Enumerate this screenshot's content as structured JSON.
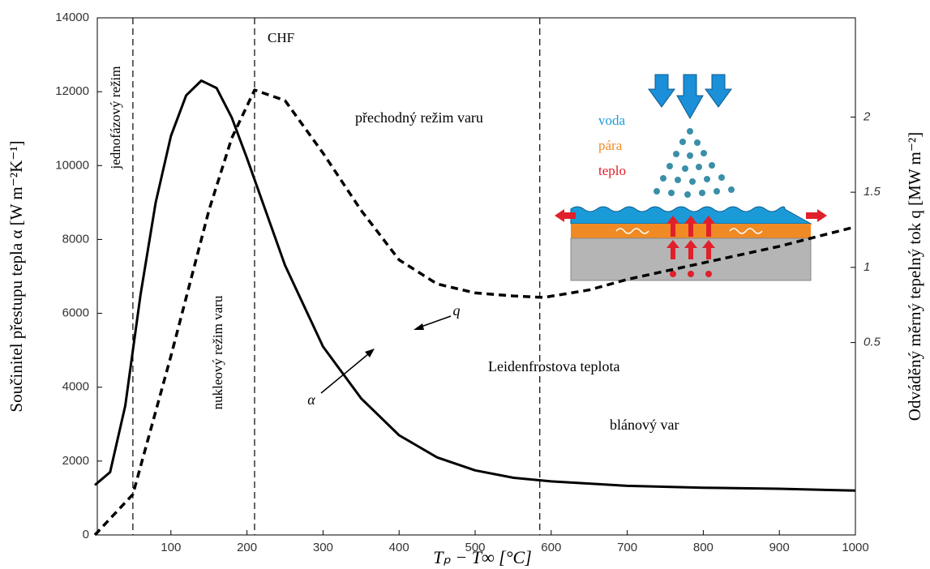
{
  "chart_data": {
    "type": "line",
    "xlabel": "Tₚ − T∞  [°C]",
    "ylabel": "Součinitel přestupu tepla α [W m⁻²K⁻¹]",
    "y2label": "Odváděný měrný tepelný tok q [MW m⁻²]",
    "xlim": [
      0,
      1000
    ],
    "xticks": [
      100,
      200,
      300,
      400,
      500,
      600,
      700,
      800,
      900,
      1000
    ],
    "ylim": [
      0,
      14000
    ],
    "yticks": [
      0,
      2000,
      4000,
      6000,
      8000,
      10000,
      12000,
      14000
    ],
    "y2lim": [
      -0.78,
      2.66
    ],
    "y2ticks": [
      0.5,
      1,
      1.5,
      2
    ],
    "vlines": [
      50,
      210,
      585
    ],
    "annotations": [
      "jednofázový režim",
      "CHF",
      "nukleový režim varu",
      "přechodný režim varu",
      "Leidenfrostova teplota",
      "blánový var"
    ],
    "inset_labels": [
      "voda",
      "pára",
      "teplo"
    ],
    "series": [
      {
        "name": "α",
        "color": "#000000",
        "dash": "solid",
        "axis": "y",
        "x": [
          0,
          20,
          40,
          60,
          80,
          100,
          120,
          140,
          160,
          180,
          200,
          250,
          300,
          350,
          400,
          450,
          500,
          550,
          600,
          700,
          800,
          900,
          1000
        ],
        "values": [
          1350,
          1700,
          3500,
          6500,
          9000,
          10800,
          11900,
          12300,
          12100,
          11300,
          10200,
          7300,
          5100,
          3700,
          2700,
          2100,
          1750,
          1550,
          1450,
          1330,
          1280,
          1250,
          1200
        ]
      },
      {
        "name": "q",
        "color": "#000000",
        "dash": "dashed",
        "axis": "y2",
        "x": [
          0,
          50,
          100,
          150,
          180,
          210,
          250,
          300,
          350,
          400,
          450,
          500,
          550,
          590,
          650,
          700,
          800,
          900,
          1000
        ],
        "values": [
          -0.78,
          -0.51,
          0.41,
          1.38,
          1.86,
          2.18,
          2.11,
          1.76,
          1.38,
          1.05,
          0.89,
          0.83,
          0.81,
          0.8,
          0.85,
          0.92,
          1.03,
          1.14,
          1.27
        ]
      }
    ]
  }
}
